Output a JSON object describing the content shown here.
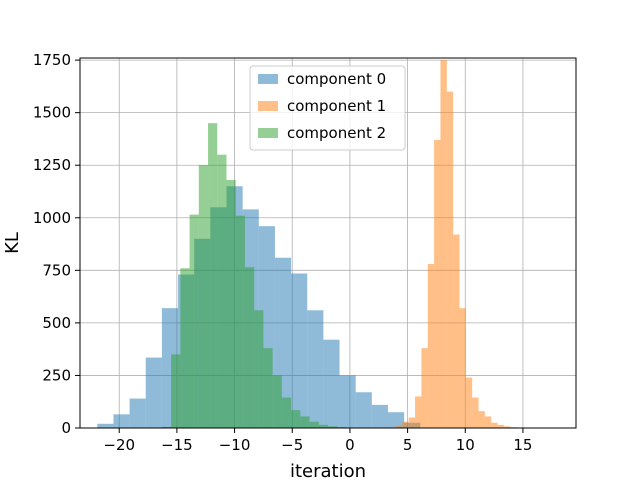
{
  "chart_data": {
    "type": "histogram",
    "xlabel": "iteration",
    "ylabel": "KL",
    "xlim": [
      -23.4,
      19.6
    ],
    "ylim": [
      0,
      1760
    ],
    "xticks": [
      -20,
      -15,
      -10,
      -5,
      0,
      5,
      10,
      15
    ],
    "xtick_labels": [
      "−20",
      "−15",
      "−10",
      "−5",
      "0",
      "5",
      "10",
      "15"
    ],
    "yticks": [
      0,
      250,
      500,
      750,
      1000,
      1250,
      1500,
      1750
    ],
    "ytick_labels": [
      "0",
      "250",
      "500",
      "750",
      "1000",
      "1250",
      "1500",
      "1750"
    ],
    "grid": true,
    "legend_position": "top-center",
    "series": [
      {
        "name": "component 0",
        "color": "#1f77b4",
        "opacity": 0.5,
        "bins": [
          [
            -21.9,
            -20.5,
            20
          ],
          [
            -20.5,
            -19.1,
            65
          ],
          [
            -19.1,
            -17.7,
            140
          ],
          [
            -17.7,
            -16.3,
            335
          ],
          [
            -16.3,
            -14.9,
            570
          ],
          [
            -14.9,
            -13.5,
            730
          ],
          [
            -13.5,
            -12.1,
            900
          ],
          [
            -12.1,
            -10.7,
            1050
          ],
          [
            -10.7,
            -9.3,
            1150
          ],
          [
            -9.3,
            -7.9,
            1040
          ],
          [
            -7.9,
            -6.5,
            960
          ],
          [
            -6.5,
            -5.1,
            810
          ],
          [
            -5.1,
            -3.7,
            735
          ],
          [
            -3.7,
            -2.3,
            560
          ],
          [
            -2.3,
            -0.9,
            420
          ],
          [
            -0.9,
            0.5,
            250
          ],
          [
            0.5,
            1.9,
            170
          ],
          [
            1.9,
            3.3,
            110
          ],
          [
            3.3,
            4.7,
            75
          ],
          [
            4.7,
            6.1,
            25
          ]
        ]
      },
      {
        "name": "component 1",
        "color": "#ff7f0e",
        "opacity": 0.5,
        "bins": [
          [
            4.0,
            4.55,
            10
          ],
          [
            4.55,
            5.1,
            30
          ],
          [
            5.1,
            5.65,
            50
          ],
          [
            5.65,
            6.2,
            150
          ],
          [
            6.2,
            6.75,
            380
          ],
          [
            6.75,
            7.3,
            780
          ],
          [
            7.3,
            7.85,
            1370
          ],
          [
            7.85,
            8.4,
            1750
          ],
          [
            8.4,
            8.95,
            1600
          ],
          [
            8.95,
            9.5,
            920
          ],
          [
            9.5,
            10.05,
            570
          ],
          [
            10.05,
            10.6,
            240
          ],
          [
            10.6,
            11.15,
            145
          ],
          [
            11.15,
            11.7,
            80
          ],
          [
            11.7,
            12.25,
            55
          ],
          [
            12.25,
            12.8,
            25
          ],
          [
            12.8,
            13.35,
            15
          ],
          [
            13.35,
            13.9,
            8
          ],
          [
            13.9,
            14.45,
            4
          ],
          [
            14.45,
            15.0,
            2
          ]
        ]
      },
      {
        "name": "component 2",
        "color": "#2ca02c",
        "opacity": 0.5,
        "bins": [
          [
            -16.3,
            -15.5,
            5
          ],
          [
            -15.5,
            -14.7,
            350
          ],
          [
            -14.7,
            -13.9,
            760
          ],
          [
            -13.9,
            -13.1,
            1015
          ],
          [
            -13.1,
            -12.3,
            1250
          ],
          [
            -12.3,
            -11.5,
            1450
          ],
          [
            -11.5,
            -10.7,
            1300
          ],
          [
            -10.7,
            -9.9,
            1180
          ],
          [
            -9.9,
            -9.1,
            1010
          ],
          [
            -9.1,
            -8.3,
            765
          ],
          [
            -8.3,
            -7.5,
            560
          ],
          [
            -7.5,
            -6.7,
            380
          ],
          [
            -6.7,
            -5.9,
            250
          ],
          [
            -5.9,
            -5.1,
            145
          ],
          [
            -5.1,
            -4.3,
            85
          ],
          [
            -4.3,
            -3.5,
            55
          ],
          [
            -3.5,
            -2.7,
            30
          ],
          [
            -2.7,
            -1.9,
            15
          ],
          [
            -1.9,
            -1.1,
            8
          ],
          [
            -1.1,
            -0.3,
            4
          ]
        ]
      }
    ]
  }
}
